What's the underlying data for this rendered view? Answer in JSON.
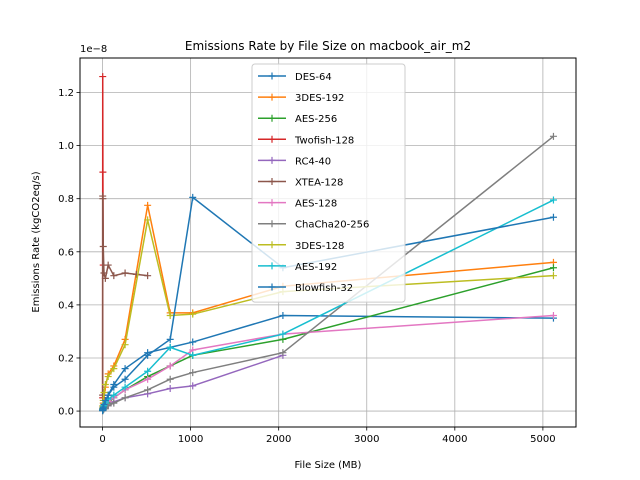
{
  "chart_data": {
    "type": "line",
    "title": "Emissions Rate by File Size on macbook_air_m2",
    "xlabel": "File Size (MB)",
    "ylabel": "Emissions Rate (kgCO2eq/s)",
    "y_offset_label": "1e−8",
    "y_scale_factor": 1e-08,
    "xlim": [
      -256,
      5376
    ],
    "ylim": [
      -0.06,
      1.33
    ],
    "x_ticks": [
      0,
      1000,
      2000,
      3000,
      4000,
      5000
    ],
    "y_ticks": [
      0.0,
      0.2,
      0.4,
      0.6,
      0.8,
      1.0,
      1.2
    ],
    "x_tick_labels": [
      "0",
      "1000",
      "2000",
      "3000",
      "4000",
      "5000"
    ],
    "y_tick_labels": [
      "0.0",
      "0.2",
      "0.4",
      "0.6",
      "0.8",
      "1.0",
      "1.2"
    ],
    "grid": true,
    "legend_position": "top-center",
    "series": [
      {
        "name": "DES-64",
        "color": "#1f77b4",
        "x": [
          1,
          2,
          4,
          8,
          16,
          32,
          64,
          128,
          256,
          512,
          768,
          1024,
          2048,
          5120
        ],
        "y": [
          0.002,
          0.004,
          0.006,
          0.01,
          0.02,
          0.03,
          0.06,
          0.1,
          0.16,
          0.22,
          0.24,
          0.26,
          0.36,
          0.35
        ]
      },
      {
        "name": "3DES-192",
        "color": "#ff7f0e",
        "x": [
          1,
          2,
          4,
          8,
          16,
          32,
          64,
          128,
          256,
          512,
          768,
          1024,
          2048,
          5120
        ],
        "y": [
          0.004,
          0.008,
          0.015,
          0.03,
          0.05,
          0.09,
          0.14,
          0.17,
          0.27,
          0.775,
          0.37,
          0.37,
          0.47,
          0.56
        ]
      },
      {
        "name": "AES-256",
        "color": "#2ca02c",
        "x": [
          1,
          2,
          4,
          8,
          16,
          32,
          64,
          128,
          256,
          512,
          768,
          1024,
          2048,
          5120
        ],
        "y": [
          0.001,
          0.002,
          0.004,
          0.007,
          0.012,
          0.02,
          0.03,
          0.05,
          0.08,
          0.13,
          0.17,
          0.21,
          0.27,
          0.54
        ]
      },
      {
        "name": "Twofish-128",
        "color": "#d62728",
        "x": [
          1,
          2,
          4,
          8
        ],
        "y": [
          0.05,
          1.26,
          0.9,
          0.55
        ]
      },
      {
        "name": "RC4-40",
        "color": "#9467bd",
        "x": [
          1,
          2,
          4,
          8,
          16,
          32,
          64,
          128,
          256,
          512,
          768,
          1024,
          2048
        ],
        "y": [
          0.001,
          0.002,
          0.003,
          0.005,
          0.008,
          0.012,
          0.02,
          0.035,
          0.05,
          0.065,
          0.085,
          0.095,
          0.21
        ]
      },
      {
        "name": "XTEA-128",
        "color": "#8c564b",
        "x": [
          1,
          2,
          4,
          8,
          16,
          32,
          64,
          128,
          256,
          384,
          512
        ],
        "y": [
          0.06,
          0.81,
          0.8,
          0.62,
          0.52,
          0.5,
          0.55,
          0.51,
          0.52,
          0.515,
          0.51
        ]
      },
      {
        "name": "AES-128",
        "color": "#e377c2",
        "x": [
          1,
          2,
          4,
          8,
          16,
          32,
          64,
          128,
          256,
          512,
          768,
          1024,
          2048,
          5120
        ],
        "y": [
          0.002,
          0.003,
          0.006,
          0.01,
          0.015,
          0.02,
          0.035,
          0.05,
          0.08,
          0.12,
          0.17,
          0.23,
          0.29,
          0.36
        ]
      },
      {
        "name": "ChaCha20-256",
        "color": "#7f7f7f",
        "x": [
          1,
          2,
          4,
          8,
          16,
          32,
          64,
          128,
          256,
          512,
          768,
          1024,
          2048,
          5120
        ],
        "y": [
          0.001,
          0.002,
          0.003,
          0.005,
          0.008,
          0.012,
          0.02,
          0.03,
          0.05,
          0.08,
          0.12,
          0.145,
          0.22,
          1.035
        ]
      },
      {
        "name": "3DES-128",
        "color": "#bcbd22",
        "x": [
          1,
          2,
          4,
          8,
          16,
          32,
          64,
          128,
          256,
          512,
          768,
          1024,
          2048,
          5120
        ],
        "y": [
          0.005,
          0.01,
          0.02,
          0.04,
          0.07,
          0.1,
          0.13,
          0.16,
          0.25,
          0.72,
          0.36,
          0.365,
          0.45,
          0.51
        ]
      },
      {
        "name": "AES-192",
        "color": "#17becf",
        "x": [
          1,
          2,
          4,
          8,
          16,
          32,
          64,
          128,
          256,
          512,
          768,
          1024,
          2048,
          5120
        ],
        "y": [
          0.002,
          0.004,
          0.007,
          0.012,
          0.02,
          0.03,
          0.045,
          0.06,
          0.09,
          0.15,
          0.24,
          0.21,
          0.29,
          0.795
        ]
      },
      {
        "name": "Blowfish-32",
        "color": "#1f77b4",
        "x": [
          1,
          2,
          4,
          8,
          16,
          32,
          64,
          128,
          256,
          512,
          768,
          1024,
          2048,
          5120
        ],
        "y": [
          0.002,
          0.005,
          0.01,
          0.015,
          0.025,
          0.04,
          0.06,
          0.09,
          0.12,
          0.21,
          0.27,
          0.805,
          0.54,
          0.73
        ]
      }
    ]
  }
}
